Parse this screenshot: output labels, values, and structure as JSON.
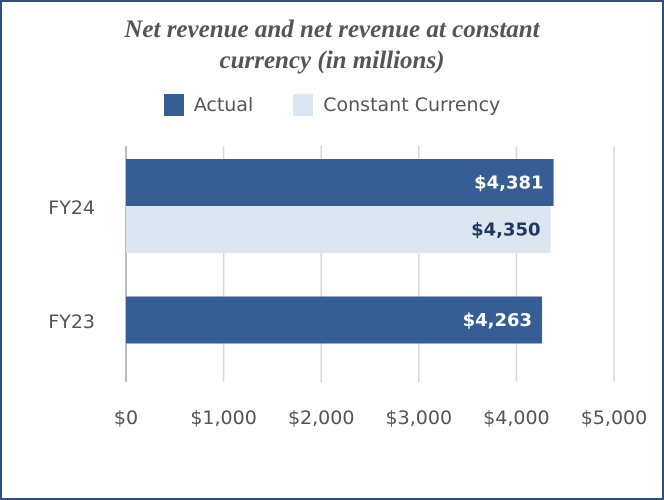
{
  "chart_data": {
    "type": "bar",
    "orientation": "horizontal",
    "title_lines": [
      "Net revenue and net revenue at constant",
      "currency (in millions)"
    ],
    "categories": [
      "FY24",
      "FY23"
    ],
    "series": [
      {
        "name": "Actual",
        "color": "#345e94",
        "label_color": "#ffffff",
        "values": [
          4381,
          4263
        ],
        "labels": [
          "$4,381",
          "$4,263"
        ]
      },
      {
        "name": "Constant Currency",
        "color": "#dce6f1",
        "label_color": "#1f3864",
        "values": [
          4350,
          null
        ],
        "labels": [
          "$4,350",
          ""
        ]
      }
    ],
    "xlim": [
      0,
      5000
    ],
    "x_ticks": [
      0,
      1000,
      2000,
      3000,
      4000,
      5000
    ],
    "x_tick_labels": [
      "$0",
      "$1,000",
      "$2,000",
      "$3,000",
      "$4,000",
      "$5,000"
    ],
    "grid": "vertical",
    "legend_position": "top"
  }
}
